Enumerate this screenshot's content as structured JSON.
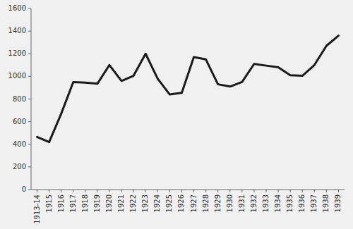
{
  "chart_data": {
    "type": "line",
    "categories": [
      "1913-14",
      "1915",
      "1916",
      "1917",
      "1918",
      "1919",
      "1920",
      "1921",
      "1922",
      "1923",
      "1924",
      "1925",
      "1926",
      "1927",
      "1928",
      "1929",
      "1930",
      "1931",
      "1932",
      "1933",
      "1934",
      "1935",
      "1936",
      "1937",
      "1938",
      "1939"
    ],
    "values": [
      465,
      420,
      670,
      950,
      945,
      935,
      1100,
      960,
      1005,
      1200,
      980,
      840,
      855,
      1170,
      1150,
      930,
      910,
      950,
      1110,
      1095,
      1080,
      1010,
      1005,
      1100,
      1270,
      1360
    ],
    "color": "#1a1a1a",
    "ylim": [
      0,
      1600
    ],
    "yticks": [
      0,
      200,
      400,
      600,
      800,
      1000,
      1200,
      1400,
      1600
    ],
    "grid": false
  }
}
